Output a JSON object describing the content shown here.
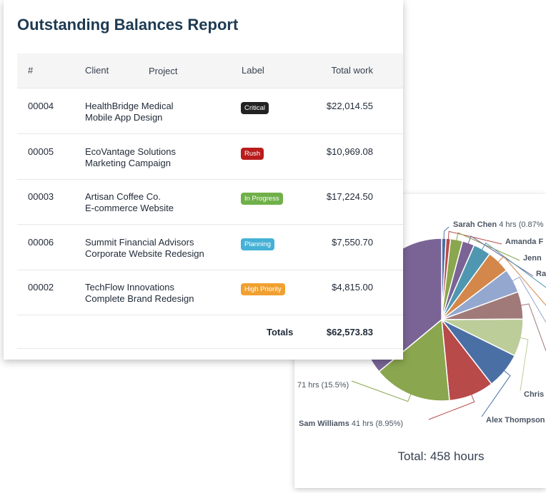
{
  "report": {
    "title": "Outstanding Balances Report",
    "columns": {
      "number": "#",
      "client": "Client",
      "project": "Project",
      "label": "Label",
      "total_work": "Total work"
    },
    "rows": [
      {
        "number": "00004",
        "client": "HealthBridge Medical",
        "project": "Mobile App Design",
        "label": "Critical",
        "label_color": "#222222",
        "amount": "$22,014.55"
      },
      {
        "number": "00005",
        "client": "EcoVantage Solutions",
        "project": "Marketing Campaign",
        "label": "Rush",
        "label_color": "#b91c1c",
        "amount": "$10,969.08"
      },
      {
        "number": "00003",
        "client": "Artisan Coffee Co.",
        "project": "E-commerce Website",
        "label": "In Progress",
        "label_color": "#6fb04a",
        "amount": "$17,224.50"
      },
      {
        "number": "00006",
        "client": "Summit Financial Advisors",
        "project": "Corporate Website Redesign",
        "label": "Planning",
        "label_color": "#45b1d6",
        "amount": "$7,550.70"
      },
      {
        "number": "00002",
        "client": "TechFlow Innovations",
        "project": "Complete Brand Redesign",
        "label": "High Priority",
        "label_color": "#f0a030",
        "amount": "$4,815.00"
      }
    ],
    "totals": {
      "label": "Totals",
      "value": "$62,573.83"
    }
  },
  "chart_data": {
    "type": "pie",
    "unit": "hrs",
    "total_label": "Total: 458 hours",
    "slices": [
      {
        "name": "Sarah Chen",
        "value": 4,
        "pct": "0.87%",
        "color": "#4a6fa5",
        "label": "Sarah Chen 4 hrs (0.87%"
      },
      {
        "name": "Amanda F",
        "value": 4,
        "pct": "",
        "color": "#b84a4a",
        "label": "Amanda F"
      },
      {
        "name": "Jenn",
        "value": 11,
        "pct": "",
        "color": "#8aa64e",
        "label": "Jenn"
      },
      {
        "name": "Ra",
        "value": 11,
        "pct": "",
        "color": "#7a6496",
        "label": "Ra"
      },
      {
        "name": "",
        "value": 16,
        "pct": "",
        "color": "#4f97b0",
        "label": ""
      },
      {
        "name": "",
        "value": 21,
        "pct": "",
        "color": "#d4874a",
        "label": ""
      },
      {
        "name": "",
        "value": 22,
        "pct": "",
        "color": "#94a8cf",
        "label": ""
      },
      {
        "name": "",
        "value": 25,
        "pct": "",
        "color": "#a07a78",
        "label": ""
      },
      {
        "name": "Chris",
        "value": 34,
        "pct": "",
        "color": "#bccd9a",
        "label": "Chris"
      },
      {
        "name": "Alex Thompson",
        "value": 33,
        "pct": "",
        "color": "#4a6fa5",
        "label": "Alex Thompson"
      },
      {
        "name": "Sam Williams",
        "value": 41,
        "pct": "8.95%",
        "color": "#b84a4a",
        "label": "Sam Williams 41 hrs (8.95%)"
      },
      {
        "name": "",
        "value": 71,
        "pct": "15.5%",
        "color": "#8aa64e",
        "label": "71 hrs (15.5%)"
      },
      {
        "name": "",
        "value": 165,
        "pct": "",
        "color": "#7a6496",
        "label": ""
      }
    ]
  }
}
